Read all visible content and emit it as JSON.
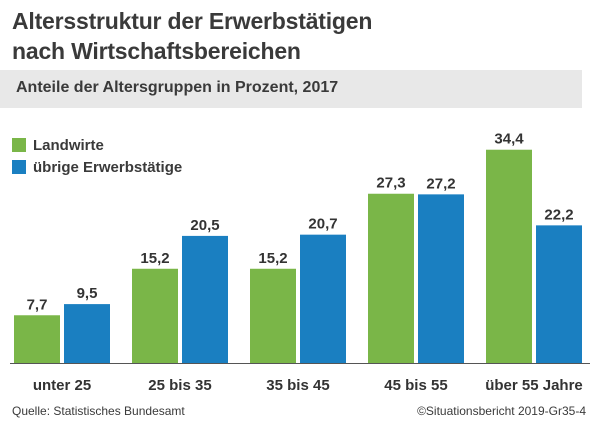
{
  "title_line1": "Altersstruktur der Erwerbstätigen",
  "title_line2": "nach Wirtschaftsbereichen",
  "subtitle": "Anteile der Altersgruppen in Prozent, 2017",
  "source": "Quelle: Statistisches Bundesamt",
  "credit": "©Situationsbericht 2019-Gr35-4",
  "colors": {
    "series1": "#7ab648",
    "series2": "#1a7fc1",
    "subtitle_bg": "#e8e8e8"
  },
  "chart_data": {
    "type": "bar",
    "title": "Altersstruktur der Erwerbstätigen nach Wirtschaftsbereichen",
    "subtitle": "Anteile der Altersgruppen in Prozent, 2017",
    "categories": [
      "unter 25",
      "25 bis 35",
      "35 bis 45",
      "45 bis 55",
      "über 55 Jahre"
    ],
    "series": [
      {
        "name": "Landwirte",
        "values": [
          7.7,
          15.2,
          15.2,
          27.3,
          34.4
        ],
        "labels": [
          "7,7",
          "15,2",
          "15,2",
          "27,3",
          "34,4"
        ]
      },
      {
        "name": "übrige Erwerbstätige",
        "values": [
          9.5,
          20.5,
          20.7,
          27.2,
          22.2
        ],
        "labels": [
          "9,5",
          "20,5",
          "20,7",
          "27,2",
          "22,2"
        ]
      }
    ],
    "ylim": [
      0,
      35
    ],
    "grid": false,
    "legend": "top-left"
  }
}
